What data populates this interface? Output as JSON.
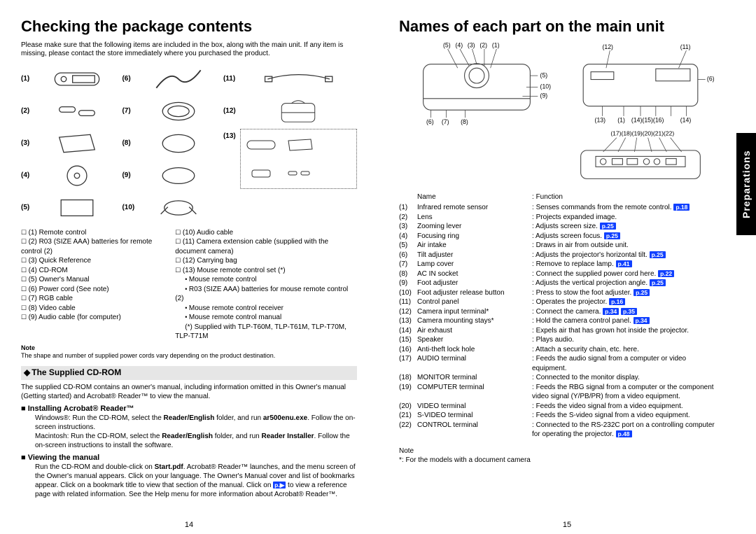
{
  "left": {
    "title": "Checking the package contents",
    "intro": "Please make sure that the following items are included in the box, along with the main unit. If any item is missing, please contact the store immediately where you purchased the product.",
    "gridNums": [
      "(1)",
      "(2)",
      "(3)",
      "(4)",
      "(5)",
      "(6)",
      "(7)",
      "(8)",
      "(9)",
      "(10)",
      "(11)",
      "(12)",
      "(13)"
    ],
    "listL": [
      "(1)  Remote control",
      "(2)  R03 (SIZE AAA) batteries for remote control (2)",
      "(3)  Quick Reference",
      "(4)  CD-ROM",
      "(5)  Owner's Manual",
      "(6)  Power cord (See note)",
      "(7)  RGB cable",
      "(8)  Video cable",
      "(9)  Audio cable (for computer)"
    ],
    "listR": [
      "(10) Audio cable",
      "(11) Camera extension cable (supplied with the document camera)",
      "(12) Carrying bag",
      "(13) Mouse remote control set (*)"
    ],
    "listRsub": [
      "Mouse remote control",
      "R03 (SIZE AAA) batteries for mouse remote control (2)",
      "Mouse remote control receiver",
      "Mouse remote control manual"
    ],
    "listRtail": "(*) Supplied with TLP-T60M, TLP-T61M, TLP-T70M, TLP-T71M",
    "noteLabel": "Note",
    "noteText": "The shape and number of supplied power cords vary depending on the product destination.",
    "cdromHeader": "The Supplied CD-ROM",
    "cdromPara": "The supplied CD-ROM contains an owner's manual, including information omitted in this Owner's manual (Getting started) and Acrobat® Reader™ to view the manual.",
    "installH": "Installing Acrobat® Reader™",
    "installP1a": "Windows®: Run the CD-ROM, select the ",
    "installP1b": "Reader/English",
    "installP1c": " folder, and run ",
    "installP1d": "ar500enu.exe",
    "installP1e": ". Follow the on-screen instructions.",
    "installP2a": "Macintosh: Run the CD-ROM, select the ",
    "installP2b": "Reader/English",
    "installP2c": " folder, and run ",
    "installP2d": "Reader Installer",
    "installP2e": ". Follow the on-screen instructions to install the software.",
    "viewH": "Viewing the manual",
    "viewPa": "Run the CD-ROM and double-click on ",
    "viewPb": "Start.pdf",
    "viewPc": ". Acrobat® Reader™ launches, and the menu screen of the Owner's manual appears. Click on your language. The Owner's Manual cover and list of bookmarks appear. Click on a bookmark title to view that section of the manual. Click on ",
    "viewPd": " to view a reference page with related information. See the Help menu for more information about Acrobat® Reader™.",
    "pagenum": "14"
  },
  "right": {
    "title": "Names of each part on the main unit",
    "calloutsTop": [
      "(5)",
      "(4)",
      "(3)",
      "(2)",
      "(1)"
    ],
    "calloutsTopR": [
      "(12)",
      "(11)"
    ],
    "calloutsMid": [
      "(5)",
      "(10)",
      "(9)",
      "(6)"
    ],
    "calloutsBot1": [
      "(6)",
      "(7)",
      "(8)"
    ],
    "calloutsBot2": [
      "(13)",
      "(1)",
      "(14)(15)(16)",
      "(14)"
    ],
    "calloutsRear": "(17)(18)(19)(20)(21)(22)",
    "tableHdrName": "Name",
    "tableHdrFunc": "Function",
    "rows": [
      {
        "n": "(1)",
        "name": "Infrared remote sensor",
        "func": "Senses commands from the remote control.",
        "ref": "p.18"
      },
      {
        "n": "(2)",
        "name": "Lens",
        "func": "Projects expanded image."
      },
      {
        "n": "(3)",
        "name": "Zooming lever",
        "func": "Adjusts screen size.",
        "ref": "p.25"
      },
      {
        "n": "(4)",
        "name": "Focusing ring",
        "func": "Adjusts screen focus.",
        "ref": "p.25"
      },
      {
        "n": "(5)",
        "name": "Air intake",
        "func": "Draws in air from outside unit."
      },
      {
        "n": "(6)",
        "name": "Tilt adjuster",
        "func": "Adjusts the projector's horizontal tilt.",
        "ref": "p.25"
      },
      {
        "n": "(7)",
        "name": "Lamp cover",
        "func": "Remove to replace lamp.",
        "ref": "p.41"
      },
      {
        "n": "(8)",
        "name": "AC IN socket",
        "func": "Connect the supplied power cord here.",
        "ref": "p.22"
      },
      {
        "n": "(9)",
        "name": "Foot adjuster",
        "func": "Adjusts the vertical projection angle.",
        "ref": "p.25"
      },
      {
        "n": "(10)",
        "name": "Foot adjuster release button",
        "func": "Press to stow the foot adjuster.",
        "ref": "p.25"
      },
      {
        "n": "(11)",
        "name": "Control panel",
        "func": "Operates the projector.",
        "ref": "p.16"
      },
      {
        "n": "(12)",
        "name": "Camera input terminal*",
        "func": "Connect the camera.",
        "ref": "p.34",
        "ref2": "p.35"
      },
      {
        "n": "(13)",
        "name": "Camera mounting stays*",
        "func": "Hold the camera control panel.",
        "ref": "p.34"
      },
      {
        "n": "(14)",
        "name": "Air exhaust",
        "func": "Expels air that has grown hot inside the projector."
      },
      {
        "n": "(15)",
        "name": "Speaker",
        "func": "Plays audio."
      },
      {
        "n": "(16)",
        "name": "Anti-theft lock hole",
        "func": "Attach a security chain, etc. here."
      },
      {
        "n": "(17)",
        "name": "AUDIO terminal",
        "func": "Feeds the audio signal from a computer or video equipment."
      },
      {
        "n": "(18)",
        "name": "MONITOR terminal",
        "func": "Connected to the monitor display."
      },
      {
        "n": "(19)",
        "name": "COMPUTER terminal",
        "func": "Feeds the RBG signal from a computer or the component video signal (Y/PB/PR) from a video equipment."
      },
      {
        "n": "(20)",
        "name": "VIDEO terminal",
        "func": "Feeds the video signal from a video equipment."
      },
      {
        "n": "(21)",
        "name": "S-VIDEO terminal",
        "func": "Feeds the S-video signal from a video equipment."
      },
      {
        "n": "(22)",
        "name": "CONTROL terminal",
        "func": "Connected to the RS-232C port on a controlling computer for operating the projector.",
        "ref": "p.48"
      }
    ],
    "noteLabel": "Note",
    "noteText": "*: For the models with a document camera",
    "sideTab": "Preparations",
    "pagenum": "15"
  }
}
